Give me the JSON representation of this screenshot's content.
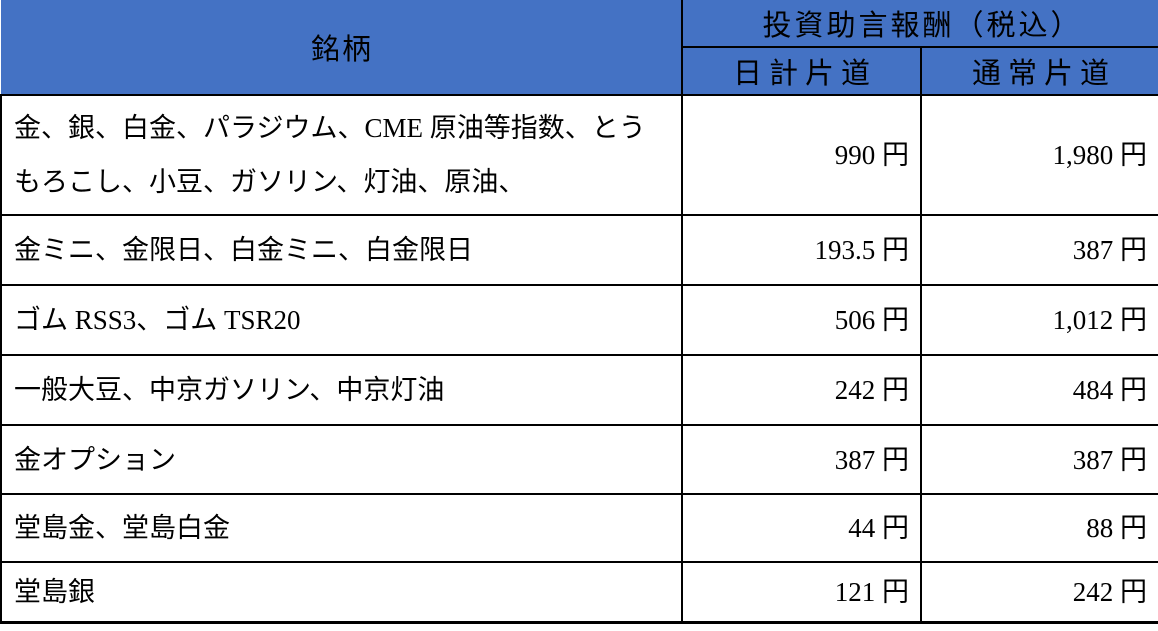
{
  "table": {
    "colors": {
      "header_bg": "#4472C4",
      "border": "#000000",
      "text": "#000000",
      "page_bg": "#FFFFFF"
    },
    "header": {
      "item_col": "銘柄",
      "fee_group": "投資助言報酬（税込）",
      "daytrade_col": "日計片道",
      "normal_col": "通常片道"
    },
    "rows": [
      {
        "items": "金、銀、白金、パラジウム、CME 原油等指数、とうもろこし、小豆、ガソリン、灯油、原油、",
        "daytrade": "990 円",
        "normal": "1,980 円"
      },
      {
        "items": "金ミニ、金限日、白金ミニ、白金限日",
        "daytrade": "193.5 円",
        "normal": "387 円"
      },
      {
        "items": "ゴム RSS3、ゴム TSR20",
        "daytrade": "506 円",
        "normal": "1,012 円"
      },
      {
        "items": "一般大豆、中京ガソリン、中京灯油",
        "daytrade": "242 円",
        "normal": "484 円"
      },
      {
        "items": "金オプション",
        "daytrade": "387 円",
        "normal": "387 円"
      },
      {
        "items": "堂島金、堂島白金",
        "daytrade": "44 円",
        "normal": "88 円"
      },
      {
        "items": "堂島銀",
        "daytrade": "121 円",
        "normal": "242 円"
      }
    ]
  }
}
